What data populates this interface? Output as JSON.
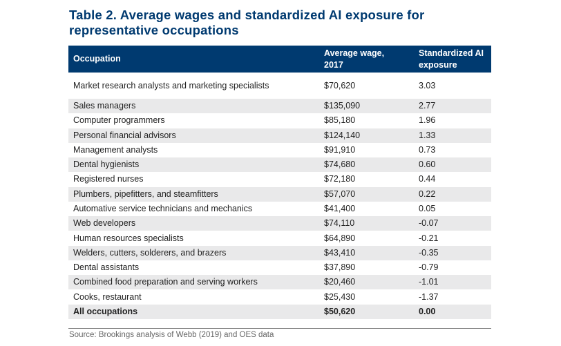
{
  "title": "Table 2. Average wages and standardized AI exposure for representative occupations",
  "headers": [
    "Occupation",
    "Average wage, 2017",
    "Standardized AI exposure"
  ],
  "rows": [
    [
      "Market research analysts and marketing specialists",
      "$70,620",
      "3.03"
    ],
    [
      "Sales managers",
      "$135,090",
      "2.77"
    ],
    [
      "Computer programmers",
      "$85,180",
      "1.96"
    ],
    [
      "Personal financial advisors",
      "$124,140",
      "1.33"
    ],
    [
      "Management analysts",
      "$91,910",
      "0.73"
    ],
    [
      "Dental hygienists",
      "$74,680",
      "0.60"
    ],
    [
      "Registered nurses",
      "$72,180",
      "0.44"
    ],
    [
      "Plumbers, pipefitters, and steamfitters",
      "$57,070",
      "0.22"
    ],
    [
      "Automative service technicians and mechanics",
      "$41,400",
      "0.05"
    ],
    [
      "Web developers",
      "$74,110",
      "-0.07"
    ],
    [
      "Human resources specialists",
      "$64,890",
      "-0.21"
    ],
    [
      "Welders, cutters, solderers, and brazers",
      "$43,410",
      "-0.35"
    ],
    [
      "Dental assistants",
      "$37,890",
      "-0.79"
    ],
    [
      "Combined food preparation and serving workers",
      "$20,460",
      "-1.01"
    ],
    [
      "Cooks, restaurant",
      "$25,430",
      "-1.37"
    ]
  ],
  "total": [
    "All occupations",
    "$50,620",
    "0.00"
  ],
  "source": "Source: Brookings analysis of Webb (2019) and OES data",
  "colors": {
    "header_bg": "#003a70",
    "stripe": "#e9e9ea"
  }
}
